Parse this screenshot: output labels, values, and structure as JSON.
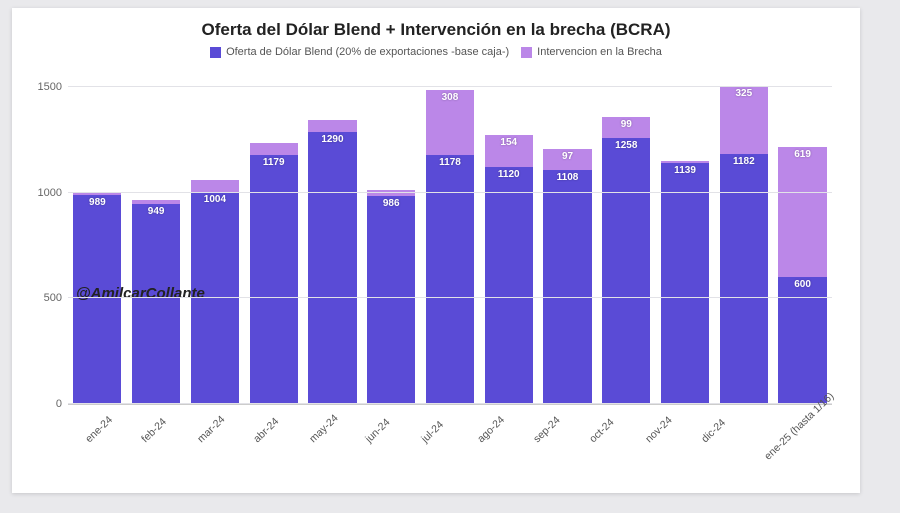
{
  "chart": {
    "type": "stacked-bar",
    "title": "Oferta del Dólar Blend + Intervención en la brecha (BCRA)",
    "title_fontsize": 17,
    "background_color": "#ffffff",
    "page_background": "#e9e9ec",
    "grid_color": "#e2e2e7",
    "axis_text_color": "#666666",
    "label_text_color": "#ffffff",
    "watermark": "@AmilcarCollante",
    "watermark_fontsize": 15,
    "ylim": [
      0,
      1600
    ],
    "yticks": [
      0,
      500,
      1000,
      1500
    ],
    "legend": [
      {
        "label": "Oferta de Dólar Blend (20% de exportaciones -base caja-)",
        "color": "#5a4bd6"
      },
      {
        "label": "Intervencion en la Brecha",
        "color": "#bb87e8"
      }
    ],
    "series_colors": {
      "blend": "#5a4bd6",
      "brecha": "#bb87e8"
    },
    "categories": [
      "ene-24",
      "feb-24",
      "mar-24",
      "abr-24",
      "may-24",
      "jun-24",
      "jul-24",
      "ago-24",
      "sep-24",
      "oct-24",
      "nov-24",
      "dic-24",
      "ene-25 (hasta 1/16)"
    ],
    "data": [
      {
        "blend": 989,
        "brecha": 10,
        "show_brecha_label": false
      },
      {
        "blend": 949,
        "brecha": 15,
        "show_brecha_label": false
      },
      {
        "blend": 1004,
        "brecha": 55,
        "show_brecha_label": false
      },
      {
        "blend": 1179,
        "brecha": 55,
        "show_brecha_label": false
      },
      {
        "blend": 1290,
        "brecha": 55,
        "show_brecha_label": false
      },
      {
        "blend": 986,
        "brecha": 25,
        "show_brecha_label": false
      },
      {
        "blend": 1178,
        "brecha": 308,
        "show_brecha_label": true
      },
      {
        "blend": 1120,
        "brecha": 154,
        "show_brecha_label": true
      },
      {
        "blend": 1108,
        "brecha": 97,
        "show_brecha_label": true
      },
      {
        "blend": 1258,
        "brecha": 99,
        "show_brecha_label": true
      },
      {
        "blend": 1139,
        "brecha": 10,
        "show_brecha_label": false
      },
      {
        "blend": 1182,
        "brecha": 325,
        "show_brecha_label": true
      },
      {
        "blend": 600,
        "brecha": 619,
        "show_brecha_label": true
      }
    ],
    "bar_width_ratio": 0.82,
    "label_fontsize": 10
  }
}
